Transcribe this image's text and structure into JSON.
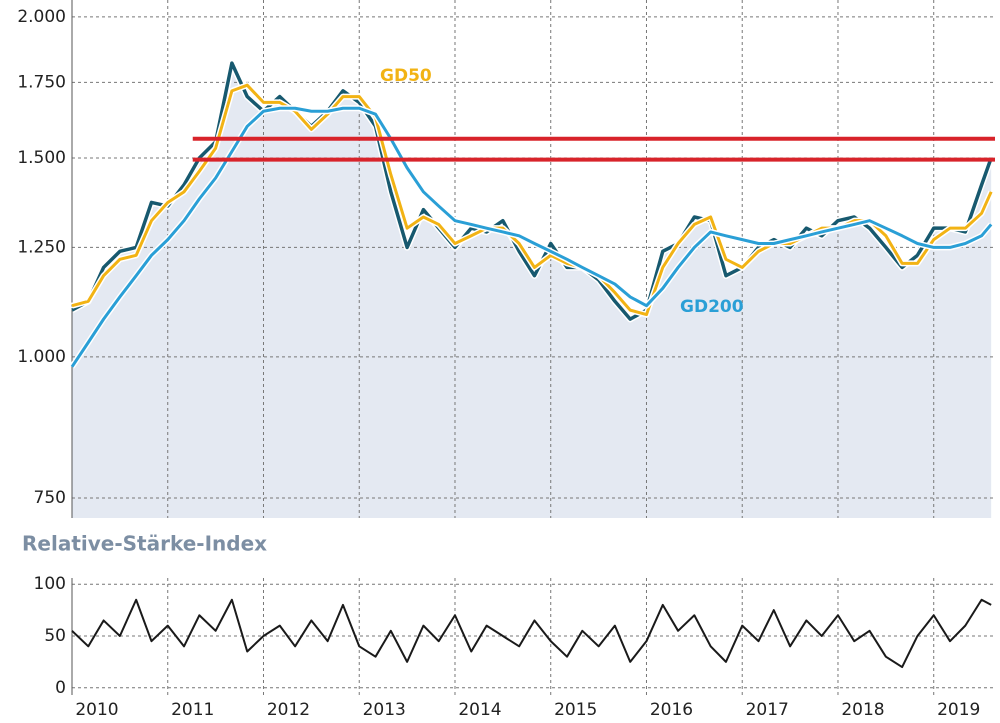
{
  "chart_data": [
    {
      "type": "line",
      "log_y": true,
      "grid": true,
      "area_under": 0,
      "area_color": "#e4e9f2",
      "x": [
        2010,
        2010.17,
        2010.33,
        2010.5,
        2010.67,
        2010.83,
        2011,
        2011.17,
        2011.33,
        2011.5,
        2011.67,
        2011.83,
        2012,
        2012.17,
        2012.33,
        2012.5,
        2012.67,
        2012.83,
        2013,
        2013.17,
        2013.33,
        2013.5,
        2013.67,
        2013.83,
        2014,
        2014.17,
        2014.33,
        2014.5,
        2014.67,
        2014.83,
        2015,
        2015.17,
        2015.33,
        2015.5,
        2015.67,
        2015.83,
        2016,
        2016.17,
        2016.33,
        2016.5,
        2016.67,
        2016.83,
        2017,
        2017.17,
        2017.33,
        2017.5,
        2017.67,
        2017.83,
        2018,
        2018.17,
        2018.33,
        2018.5,
        2018.67,
        2018.83,
        2019,
        2019.17,
        2019.33,
        2019.5,
        2019.6
      ],
      "xlim": [
        2010,
        2019.64
      ],
      "xticks": [
        2010,
        2011,
        2012,
        2013,
        2014,
        2015,
        2016,
        2017,
        2018,
        2019
      ],
      "ylim": [
        720,
        2070
      ],
      "yticks": [
        {
          "value": 750,
          "label": "750"
        },
        {
          "value": 1000,
          "label": "1.000"
        },
        {
          "value": 1250,
          "label": "1.250"
        },
        {
          "value": 1500,
          "label": "1.500"
        },
        {
          "value": 1750,
          "label": "1.750"
        },
        {
          "value": 2000,
          "label": "2.000"
        }
      ],
      "series": [
        {
          "color": "#17596f",
          "values": [
            1100,
            1120,
            1200,
            1240,
            1250,
            1370,
            1360,
            1420,
            1500,
            1550,
            1820,
            1700,
            1650,
            1700,
            1650,
            1600,
            1650,
            1720,
            1680,
            1600,
            1400,
            1250,
            1350,
            1300,
            1250,
            1300,
            1290,
            1320,
            1240,
            1180,
            1260,
            1200,
            1200,
            1170,
            1120,
            1080,
            1100,
            1240,
            1260,
            1330,
            1320,
            1180,
            1200,
            1250,
            1270,
            1250,
            1300,
            1280,
            1320,
            1330,
            1300,
            1250,
            1200,
            1230,
            1300,
            1300,
            1290,
            1420,
            1500
          ]
        },
        {
          "name": "GD50",
          "color": "#f2b314",
          "values": [
            1110,
            1120,
            1180,
            1220,
            1230,
            1320,
            1370,
            1400,
            1460,
            1530,
            1720,
            1740,
            1680,
            1680,
            1650,
            1590,
            1640,
            1700,
            1700,
            1630,
            1450,
            1300,
            1330,
            1310,
            1260,
            1280,
            1300,
            1300,
            1260,
            1200,
            1230,
            1210,
            1200,
            1180,
            1140,
            1100,
            1090,
            1200,
            1260,
            1310,
            1330,
            1220,
            1200,
            1240,
            1260,
            1260,
            1280,
            1300,
            1300,
            1320,
            1320,
            1280,
            1210,
            1210,
            1270,
            1300,
            1300,
            1340,
            1400
          ]
        },
        {
          "name": "GD200",
          "color": "#2a9fd6",
          "values": [
            980,
            1030,
            1080,
            1130,
            1180,
            1230,
            1270,
            1320,
            1380,
            1440,
            1520,
            1600,
            1650,
            1660,
            1660,
            1650,
            1650,
            1660,
            1660,
            1640,
            1560,
            1470,
            1400,
            1360,
            1320,
            1310,
            1300,
            1290,
            1280,
            1260,
            1240,
            1220,
            1200,
            1180,
            1160,
            1130,
            1110,
            1150,
            1200,
            1250,
            1290,
            1280,
            1270,
            1260,
            1260,
            1270,
            1280,
            1290,
            1300,
            1310,
            1320,
            1300,
            1280,
            1260,
            1250,
            1250,
            1260,
            1280,
            1310
          ]
        }
      ],
      "hlines": [
        1560,
        1495
      ],
      "hline_start": 2011,
      "hline_color": "#d8232a"
    },
    {
      "type": "line",
      "title": "Relative-Stärke-Index",
      "grid": true,
      "x": [
        2010,
        2010.17,
        2010.33,
        2010.5,
        2010.67,
        2010.83,
        2011,
        2011.17,
        2011.33,
        2011.5,
        2011.67,
        2011.83,
        2012,
        2012.17,
        2012.33,
        2012.5,
        2012.67,
        2012.83,
        2013,
        2013.17,
        2013.33,
        2013.5,
        2013.67,
        2013.83,
        2014,
        2014.17,
        2014.33,
        2014.5,
        2014.67,
        2014.83,
        2015,
        2015.17,
        2015.33,
        2015.5,
        2015.67,
        2015.83,
        2016,
        2016.17,
        2016.33,
        2016.5,
        2016.67,
        2016.83,
        2017,
        2017.17,
        2017.33,
        2017.5,
        2017.67,
        2017.83,
        2018,
        2018.17,
        2018.33,
        2018.5,
        2018.67,
        2018.83,
        2019,
        2019.17,
        2019.33,
        2019.5,
        2019.6
      ],
      "xlim": [
        2010,
        2019.64
      ],
      "xticks": [
        2010,
        2011,
        2012,
        2013,
        2014,
        2015,
        2016,
        2017,
        2018,
        2019
      ],
      "ylim": [
        -7,
        106
      ],
      "yticks": [
        0,
        50,
        100
      ],
      "series": [
        {
          "color": "#1a1a1a",
          "values": [
            55,
            40,
            65,
            50,
            85,
            45,
            60,
            40,
            70,
            55,
            85,
            35,
            50,
            60,
            40,
            65,
            45,
            80,
            40,
            30,
            55,
            25,
            60,
            45,
            70,
            35,
            60,
            50,
            40,
            65,
            45,
            30,
            55,
            40,
            60,
            25,
            45,
            80,
            55,
            70,
            40,
            25,
            60,
            45,
            75,
            40,
            65,
            50,
            70,
            45,
            55,
            30,
            20,
            50,
            70,
            45,
            60,
            85,
            80
          ]
        }
      ]
    }
  ]
}
